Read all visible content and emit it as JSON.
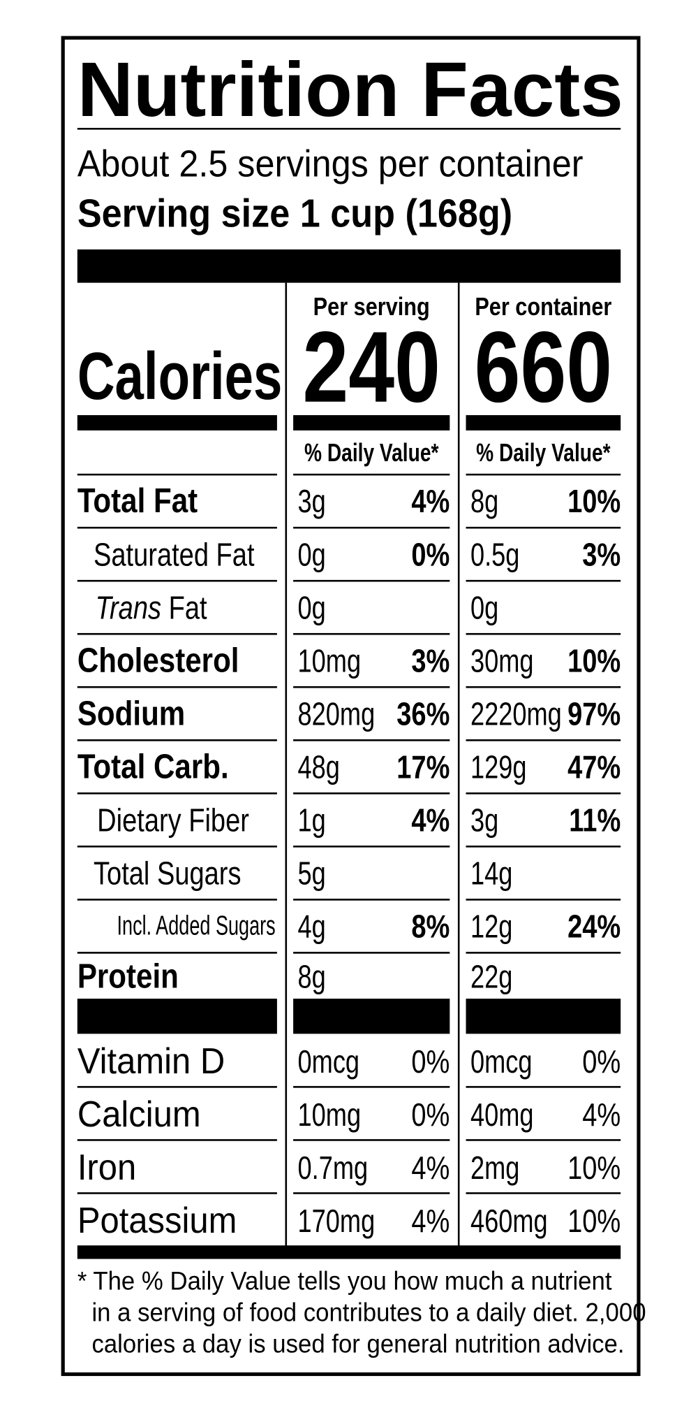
{
  "header": {
    "title": "Nutrition Facts",
    "servings": "About 2.5 servings per container",
    "serving_size": "Serving size 1 cup (168g)"
  },
  "calories": {
    "label": "Calories",
    "columns": [
      {
        "heading": "Per serving",
        "value": "240",
        "dv_heading": "% Daily Value*"
      },
      {
        "heading": "Per container",
        "value": "660",
        "dv_heading": "% Daily Value*"
      }
    ]
  },
  "nutrients": [
    {
      "name": "Total Fat",
      "serving": {
        "amount": "3g",
        "dv": "4%"
      },
      "container": {
        "amount": "8g",
        "dv": "10%"
      }
    },
    {
      "name": "Saturated Fat",
      "serving": {
        "amount": "0g",
        "dv": "0%"
      },
      "container": {
        "amount": "0.5g",
        "dv": "3%"
      }
    },
    {
      "name_italic": "Trans",
      "name": "Fat",
      "serving": {
        "amount": "0g"
      },
      "container": {
        "amount": "0g"
      }
    },
    {
      "name": "Cholesterol",
      "serving": {
        "amount": "10mg",
        "dv": "3%"
      },
      "container": {
        "amount": "30mg",
        "dv": "10%"
      }
    },
    {
      "name": "Sodium",
      "serving": {
        "amount": "820mg",
        "dv": "36%"
      },
      "container": {
        "amount": "2220mg",
        "dv": "97%"
      }
    },
    {
      "name": "Total Carb.",
      "serving": {
        "amount": "48g",
        "dv": "17%"
      },
      "container": {
        "amount": "129g",
        "dv": "47%"
      }
    },
    {
      "name": "Dietary Fiber",
      "serving": {
        "amount": "1g",
        "dv": "4%"
      },
      "container": {
        "amount": "3g",
        "dv": "11%"
      }
    },
    {
      "name": "Total Sugars",
      "serving": {
        "amount": "5g"
      },
      "container": {
        "amount": "14g"
      }
    },
    {
      "name": "Incl. Added Sugars",
      "serving": {
        "amount": "4g",
        "dv": "8%"
      },
      "container": {
        "amount": "12g",
        "dv": "24%"
      }
    },
    {
      "name": "Protein",
      "serving": {
        "amount": "8g"
      },
      "container": {
        "amount": "22g"
      }
    }
  ],
  "vitamins": [
    {
      "name": "Vitamin D",
      "serving": {
        "amount": "0mcg",
        "dv": "0%"
      },
      "container": {
        "amount": "0mcg",
        "dv": "0%"
      }
    },
    {
      "name": "Calcium",
      "serving": {
        "amount": "10mg",
        "dv": "0%"
      },
      "container": {
        "amount": "40mg",
        "dv": "4%"
      }
    },
    {
      "name": "Iron",
      "serving": {
        "amount": "0.7mg",
        "dv": "4%"
      },
      "container": {
        "amount": "2mg",
        "dv": "10%"
      }
    },
    {
      "name": "Potassium",
      "serving": {
        "amount": "170mg",
        "dv": "4%"
      },
      "container": {
        "amount": "460mg",
        "dv": "10%"
      }
    }
  ],
  "footnote": [
    "* The % Daily Value tells you how much a nutrient",
    "in a serving of food contributes to a daily diet. 2,000",
    "calories a day is used for general nutrition advice."
  ]
}
